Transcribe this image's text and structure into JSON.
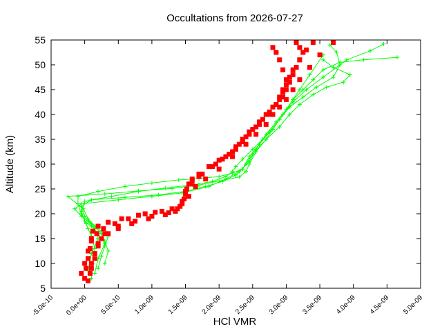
{
  "chart_data": {
    "type": "scatter",
    "title": "Occultations from 2026-07-27",
    "xlabel": "HCl VMR",
    "ylabel": "Altitude (km)",
    "xlim": [
      -5e-10,
      5e-09
    ],
    "ylim": [
      5,
      55
    ],
    "x_ticks": [
      -5e-10,
      0,
      5e-10,
      1e-09,
      1.5e-09,
      2e-09,
      2.5e-09,
      3e-09,
      3.5e-09,
      4e-09,
      4.5e-09,
      5e-09
    ],
    "x_tick_labels": [
      "-5.0e-10",
      "0.0e+00",
      "5.0e-10",
      "1.0e-09",
      "1.5e-09",
      "2.0e-09",
      "2.5e-09",
      "3.0e-09",
      "3.5e-09",
      "4.0e-09",
      "4.5e-09",
      "5.0e-09"
    ],
    "y_ticks": [
      5,
      10,
      15,
      20,
      25,
      30,
      35,
      40,
      45,
      50,
      55
    ],
    "y_tick_labels": [
      "5",
      "10",
      "15",
      "20",
      "25",
      "30",
      "35",
      "40",
      "45",
      "50",
      "55"
    ],
    "grid": false,
    "legend": "none",
    "series": [
      {
        "color": "#00ff00",
        "marker": "plus",
        "line": true,
        "profiles": [
          {
            "x": [
              1e-10,
              1.2e-10,
              1.5e-10,
              1e-10,
              5e-11,
              2e-11,
              -5e-11,
              -1e-10,
              -1e-10,
              2e-10,
              6e-10,
              1e-09,
              1.4e-09,
              1.7e-09,
              2e-09,
              2.2e-09,
              2.35e-09,
              2.4e-09,
              2.5e-09,
              2.7e-09,
              2.8e-09,
              2.95e-09,
              3.1e-09,
              3.25e-09,
              3.4e-09,
              3.55e-09,
              3.8e-09,
              4.15e-09,
              4.65e-09
            ],
            "y": [
              7,
              10,
              13,
              15.5,
              17,
              18,
              20,
              22,
              23.5,
              24.5,
              25.5,
              26.2,
              26.8,
              27.1,
              27.5,
              28.2,
              29,
              30,
              32,
              35,
              37,
              40,
              43,
              45,
              47,
              49,
              50.5,
              51,
              51.5
            ]
          },
          {
            "x": [
              1.5e-10,
              2e-10,
              3e-10,
              2e-10,
              1e-10,
              0.0,
              -5e-11,
              0.0,
              4e-10,
              8e-10,
              1.2e-09,
              1.6e-09,
              1.9e-09,
              2.1e-09,
              2.2e-09,
              2.25e-09,
              2.35e-09,
              2.5e-09,
              2.65e-09,
              2.8e-09,
              2.95e-09,
              3.1e-09,
              3.3e-09,
              3.55e-09,
              3.9e-09,
              4.25e-09,
              4.45e-09
            ],
            "y": [
              8,
              11,
              14,
              16,
              17.5,
              18.5,
              20.5,
              22.5,
              23.5,
              24.5,
              25.2,
              25.8,
              26.5,
              27.5,
              28.5,
              29.5,
              31,
              33,
              35,
              37,
              40,
              42.5,
              45,
              47.5,
              51,
              52.8,
              54.2
            ]
          },
          {
            "x": [
              2e-10,
              2.5e-10,
              3e-10,
              3.5e-10,
              2.5e-10,
              1.5e-10,
              5e-11,
              -2e-11,
              -2.5e-10,
              3e-10,
              8e-10,
              1.3e-09,
              1.7e-09,
              2e-09,
              2.3e-09,
              2.4e-09,
              2.45e-09,
              2.55e-09,
              2.7e-09,
              2.9e-09,
              3.05e-09,
              3.2e-09,
              3.4e-09,
              3.6e-09,
              3.85e-09,
              3.95e-09,
              3.7e-09,
              3.55e-09
            ],
            "y": [
              9,
              11.5,
              13.5,
              15.5,
              16.5,
              17.5,
              19,
              21,
              23.5,
              24,
              24.6,
              25.1,
              25.8,
              26.6,
              27.4,
              28.5,
              30,
              32.5,
              35,
              37.5,
              40,
              42,
              44,
              45.5,
              46.5,
              48,
              49.5,
              51
            ]
          },
          {
            "x": [
              3e-10,
              3.5e-10,
              3e-10,
              2.5e-10,
              1e-10,
              0.0,
              -5e-11,
              1e-10,
              6e-10,
              1.1e-09,
              1.5e-09,
              1.8e-09,
              2.05e-09,
              2.25e-09,
              2.35e-09,
              2.45e-09,
              2.6e-09,
              2.75e-09,
              2.9e-09,
              3.05e-09,
              3.25e-09,
              3.45e-09,
              3.7e-09,
              3.8e-09,
              3.75e-09,
              3.65e-09
            ],
            "y": [
              10,
              12.5,
              14.5,
              16,
              18,
              19.5,
              21.5,
              22.8,
              23.3,
              23.8,
              24.5,
              25.5,
              26.5,
              27.8,
              29,
              31.5,
              34,
              36.5,
              39,
              41.5,
              43.5,
              45.5,
              47.5,
              50,
              52.5,
              54
            ]
          },
          {
            "x": [
              5e-11,
              1e-10,
              2e-10,
              1.5e-10,
              5e-11,
              -5e-11,
              -1.5e-10,
              -5e-11,
              5e-10,
              1e-09,
              1.45e-09,
              1.85e-09,
              2.1e-09,
              2.3e-09,
              2.45e-09,
              2.55e-09,
              2.7e-09,
              2.85e-09,
              3e-09,
              3.1e-09,
              3.2e-09,
              3.35e-09,
              3.55e-09
            ],
            "y": [
              8.5,
              12,
              15,
              17,
              18.5,
              19.5,
              21,
              22,
              22.8,
              23.5,
              24.2,
              25.5,
              27,
              28.5,
              30.5,
              33,
              36,
              38.5,
              41,
              43,
              45,
              48,
              52
            ]
          }
        ]
      },
      {
        "color": "#ff0000",
        "marker": "filled-square",
        "line": false,
        "profiles": [
          {
            "x": [
              0.0,
              2e-11,
              5e-11,
              8e-11,
              1e-10,
              1.2e-10,
              2e-10,
              3.5e-10,
              5.5e-10,
              8e-10,
              1.05e-09,
              1.3e-09,
              1.45e-09,
              1.5e-09,
              1.55e-09,
              1.6e-09,
              1.7e-09,
              1.85e-09,
              2e-09,
              2.15e-09,
              2.25e-09,
              2.35e-09,
              2.45e-09,
              2.55e-09,
              2.65e-09,
              2.75e-09,
              2.85e-09,
              2.95e-09,
              3e-09,
              3.05e-09,
              3.1e-09,
              3.15e-09,
              3.2e-09,
              3.25e-09,
              3.2e-09,
              3.15e-09
            ],
            "y": [
              7,
              9,
              11,
              13,
              15,
              16.5,
              17.5,
              18.3,
              19,
              19.7,
              20.3,
              21,
              22,
              24,
              26,
              27,
              28,
              29.5,
              30.8,
              32,
              33.5,
              35,
              36.5,
              37.5,
              39,
              40.5,
              42,
              43.5,
              45,
              46.5,
              48,
              49.5,
              51,
              52.5,
              53.5,
              54.5
            ]
          },
          {
            "x": [
              5e-11,
              8e-11,
              1e-10,
              1.5e-10,
              2e-10,
              3e-10,
              5e-10,
              7.5e-10,
              1e-09,
              1.25e-09,
              1.42e-09,
              1.48e-09,
              1.52e-09,
              1.6e-09,
              1.75e-09,
              1.9e-09,
              2.05e-09,
              2.2e-09,
              2.3e-09,
              2.4e-09,
              2.5e-09,
              2.6e-09,
              2.7e-09,
              2.8e-09,
              2.9e-09,
              2.95e-09,
              3e-09,
              3.05e-09,
              3.1e-09,
              3.2e-09,
              3.3e-09,
              3.4e-09
            ],
            "y": [
              6.5,
              8,
              10,
              12,
              14,
              16,
              17.5,
              18.5,
              19.5,
              20.2,
              21.5,
              23,
              25,
              26.5,
              28,
              29.5,
              31,
              32.5,
              34,
              35.5,
              37,
              38.5,
              40,
              41.5,
              43,
              44.5,
              46,
              47.5,
              49,
              51,
              53,
              54.5
            ]
          },
          {
            "x": [
              -5e-11,
              0.0,
              5e-11,
              1e-10,
              1.8e-10,
              2.8e-10,
              4.5e-10,
              6.5e-10,
              9e-10,
              1.15e-09,
              1.38e-09,
              1.45e-09,
              1.5e-09,
              1.58e-09,
              1.7e-09,
              1.95e-09,
              2.1e-09,
              2.25e-09,
              2.35e-09,
              2.45e-09,
              2.6e-09,
              2.75e-09,
              2.85e-09,
              2.9e-09,
              2.95e-09,
              3e-09,
              2.95e-09,
              2.9e-09,
              2.85e-09,
              2.8e-09
            ],
            "y": [
              8,
              10,
              12.5,
              14.5,
              16,
              17,
              18,
              19,
              20,
              20.5,
              21,
              22.5,
              24.5,
              26,
              27.5,
              30,
              31.5,
              33,
              34.5,
              36,
              38,
              40,
              42,
              43.5,
              45,
              47,
              49,
              51,
              52.5,
              53.5
            ]
          },
          {
            "x": [
              1e-10,
              1.5e-10,
              2e-10,
              2.5e-10,
              3.5e-10,
              5e-10,
              7e-10,
              9.5e-10,
              1.2e-09,
              1.35e-09,
              1.55e-09,
              1.65e-09,
              1.8e-09,
              2e-09,
              2.2e-09,
              2.4e-09,
              2.55e-09,
              2.7e-09,
              2.8e-09,
              2.9e-09,
              3e-09,
              3.1e-09,
              3.2e-09,
              3.35e-09,
              3.5e-09,
              3.7e-09
            ],
            "y": [
              9,
              11,
              13.5,
              15,
              16,
              17,
              18,
              19,
              19.8,
              20.5,
              23.5,
              25.5,
              27,
              29,
              31.5,
              34,
              36,
              38,
              40,
              41.5,
              43,
              45,
              47,
              49.5,
              52,
              54.5
            ]
          }
        ]
      }
    ]
  }
}
